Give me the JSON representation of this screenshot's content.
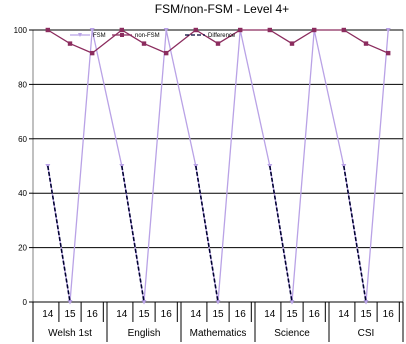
{
  "chart_data": {
    "type": "line",
    "title": "FSM/non-FSM - Level 4+",
    "groups": [
      "Welsh 1st",
      "English",
      "Mathematics",
      "Science",
      "CSI"
    ],
    "categories": [
      "14",
      "15",
      "16"
    ],
    "ylim": [
      0,
      100
    ],
    "yticks": [
      0,
      20,
      40,
      60,
      80,
      100
    ],
    "grid": "horizontal",
    "legend_position": "top",
    "series": [
      {
        "name": "FSM",
        "color": "#b9a2e6",
        "marker": "triangle",
        "values": [
          [
            50,
            0,
            100
          ],
          [
            50,
            0,
            100
          ],
          [
            50,
            0,
            100
          ],
          [
            50,
            0,
            100
          ],
          [
            50,
            0,
            100
          ]
        ]
      },
      {
        "name": "non-FSM",
        "color": "#8b2c5e",
        "marker": "square",
        "values": [
          [
            100,
            95,
            91.5
          ],
          [
            100,
            95,
            91.5
          ],
          [
            100,
            95,
            100
          ],
          [
            100,
            95,
            100
          ],
          [
            100,
            95,
            91.5
          ]
        ]
      },
      {
        "name": "Difference",
        "color": "#000033",
        "dash": true,
        "values": [
          [
            50,
            0,
            null
          ],
          [
            50,
            0,
            null
          ],
          [
            50,
            0,
            null
          ],
          [
            50,
            0,
            null
          ],
          [
            50,
            0,
            null
          ]
        ]
      }
    ]
  }
}
